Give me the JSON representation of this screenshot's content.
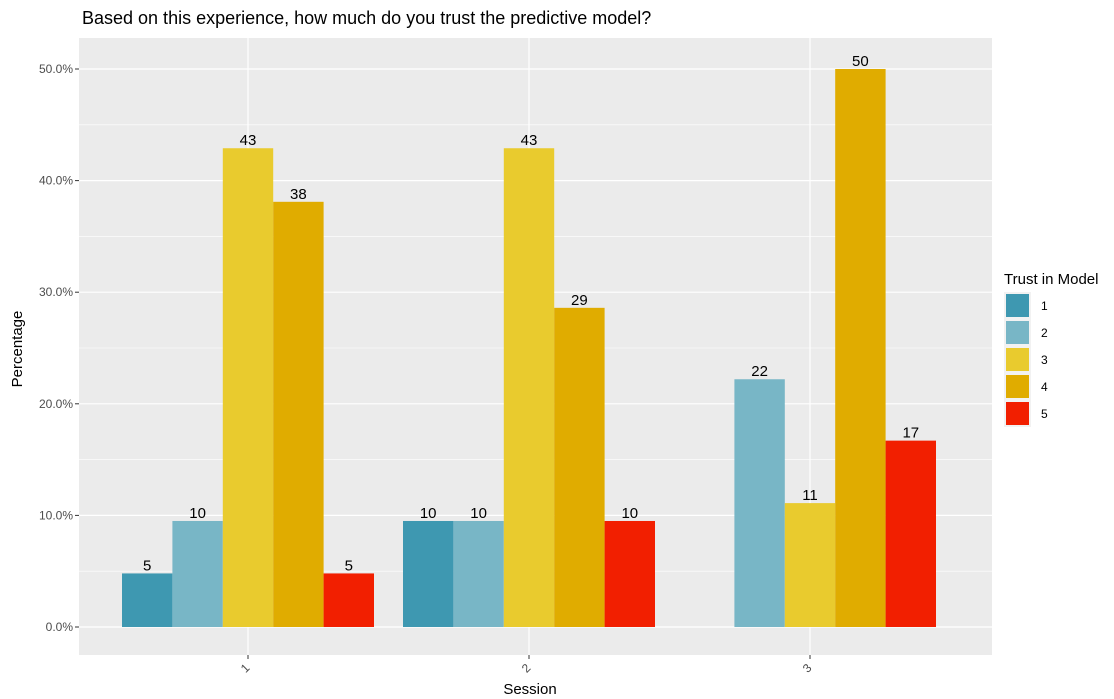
{
  "chart_data": {
    "type": "bar",
    "title": "Based on this experience, how much do you trust the predictive model?",
    "xlabel": "Session",
    "ylabel": "Percentage",
    "categories": [
      "1",
      "2",
      "3"
    ],
    "ylim": [
      0,
      0.5
    ],
    "yticks": [
      "0.0%",
      "10.0%",
      "20.0%",
      "30.0%",
      "40.0%",
      "50.0%"
    ],
    "grid": true,
    "legend": {
      "title": "Trust in Model",
      "position": "right"
    },
    "series": [
      {
        "name": "1",
        "color": "#3e98b1",
        "values": [
          0.048,
          0.095,
          null
        ],
        "labels": [
          "5",
          "10",
          ""
        ]
      },
      {
        "name": "2",
        "color": "#78b6c6",
        "values": [
          0.095,
          0.095,
          0.222
        ],
        "labels": [
          "10",
          "10",
          "22"
        ]
      },
      {
        "name": "3",
        "color": "#e9cb2e",
        "values": [
          0.429,
          0.429,
          0.111
        ],
        "labels": [
          "43",
          "43",
          "11"
        ]
      },
      {
        "name": "4",
        "color": "#e0ac00",
        "values": [
          0.381,
          0.286,
          0.5
        ],
        "labels": [
          "38",
          "29",
          "50"
        ]
      },
      {
        "name": "5",
        "color": "#f21f00",
        "values": [
          0.048,
          0.095,
          0.167
        ],
        "labels": [
          "5",
          "10",
          "17"
        ]
      }
    ]
  }
}
